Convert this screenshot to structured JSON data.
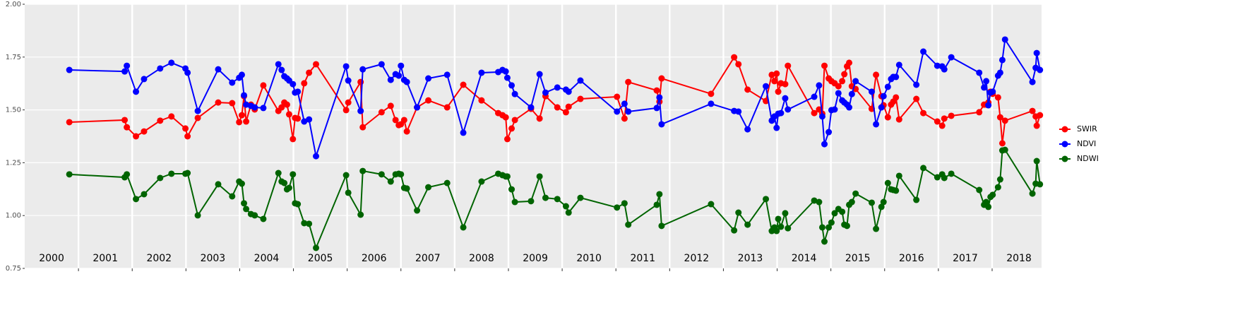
{
  "chart_data": {
    "type": "line",
    "x": [
      2000.83,
      2001.86,
      2001.9,
      2002.07,
      2002.22,
      2002.52,
      2002.73,
      2002.99,
      2003.03,
      2003.22,
      2003.6,
      2003.86,
      2003.99,
      2004.04,
      2004.08,
      2004.12,
      2004.21,
      2004.28,
      2004.44,
      2004.72,
      2004.78,
      2004.83,
      2004.88,
      2004.92,
      2004.99,
      2005.03,
      2005.08,
      2005.2,
      2005.29,
      2005.42,
      2005.98,
      2006.02,
      2006.25,
      2006.29,
      2006.64,
      2006.81,
      2006.9,
      2006.96,
      2007.0,
      2007.06,
      2007.11,
      2007.3,
      2007.51,
      2007.86,
      2008.16,
      2008.5,
      2008.81,
      2008.89,
      2008.95,
      2008.98,
      2009.06,
      2009.12,
      2009.42,
      2009.58,
      2009.69,
      2009.91,
      2010.07,
      2010.12,
      2010.34,
      2011.02,
      2011.16,
      2011.23,
      2011.76,
      2011.81,
      2011.85,
      2012.77,
      2013.2,
      2013.28,
      2013.45,
      2013.79,
      2013.9,
      2013.95,
      2013.99,
      2014.02,
      2014.07,
      2014.15,
      2014.2,
      2014.69,
      2014.78,
      2014.84,
      2014.88,
      2014.96,
      2015.01,
      2015.07,
      2015.14,
      2015.21,
      2015.25,
      2015.3,
      2015.34,
      2015.39,
      2015.46,
      2015.76,
      2015.84,
      2015.94,
      2015.98,
      2016.06,
      2016.12,
      2016.16,
      2016.21,
      2016.27,
      2016.59,
      2016.72,
      2016.98,
      2017.07,
      2017.11,
      2017.24,
      2017.76,
      2017.85,
      2017.89,
      2017.93,
      2017.97,
      2018.01,
      2018.11,
      2018.15,
      2018.19,
      2018.24,
      2018.75,
      2018.81,
      2018.83,
      2018.89
    ],
    "series": [
      {
        "name": "SWIR",
        "color": "#ff0000",
        "values": [
          1.442,
          1.452,
          1.418,
          1.375,
          1.398,
          1.449,
          1.469,
          1.412,
          1.375,
          1.462,
          1.535,
          1.532,
          1.442,
          1.475,
          1.565,
          1.445,
          1.525,
          1.502,
          1.616,
          1.495,
          1.512,
          1.535,
          1.525,
          1.479,
          1.362,
          1.462,
          1.459,
          1.626,
          1.676,
          1.716,
          1.499,
          1.535,
          1.632,
          1.418,
          1.489,
          1.519,
          1.452,
          1.428,
          1.432,
          1.452,
          1.398,
          1.512,
          1.545,
          1.512,
          1.619,
          1.545,
          1.485,
          1.475,
          1.465,
          1.362,
          1.412,
          1.452,
          1.505,
          1.459,
          1.565,
          1.512,
          1.489,
          1.515,
          1.552,
          1.562,
          1.459,
          1.632,
          1.592,
          1.539,
          1.649,
          1.576,
          1.749,
          1.716,
          1.596,
          1.542,
          1.666,
          1.636,
          1.672,
          1.586,
          1.626,
          1.622,
          1.709,
          1.485,
          1.502,
          1.482,
          1.709,
          1.649,
          1.636,
          1.626,
          1.612,
          1.636,
          1.669,
          1.706,
          1.723,
          1.612,
          1.599,
          1.505,
          1.666,
          1.565,
          1.522,
          1.465,
          1.525,
          1.539,
          1.559,
          1.455,
          1.552,
          1.485,
          1.445,
          1.425,
          1.459,
          1.472,
          1.489,
          1.525,
          1.525,
          1.535,
          1.586,
          1.576,
          1.559,
          1.465,
          1.342,
          1.449,
          1.495,
          1.469,
          1.425,
          1.475
        ]
      },
      {
        "name": "NDVI",
        "color": "#0000ff",
        "values": [
          1.689,
          1.682,
          1.709,
          1.586,
          1.646,
          1.696,
          1.723,
          1.696,
          1.676,
          1.495,
          1.692,
          1.629,
          1.652,
          1.666,
          1.569,
          1.525,
          1.519,
          1.512,
          1.509,
          1.716,
          1.689,
          1.659,
          1.649,
          1.639,
          1.622,
          1.582,
          1.586,
          1.445,
          1.455,
          1.281,
          1.706,
          1.639,
          1.495,
          1.692,
          1.716,
          1.642,
          1.669,
          1.662,
          1.709,
          1.642,
          1.632,
          1.512,
          1.649,
          1.666,
          1.392,
          1.676,
          1.679,
          1.689,
          1.682,
          1.652,
          1.616,
          1.575,
          1.512,
          1.669,
          1.582,
          1.606,
          1.596,
          1.586,
          1.639,
          1.492,
          1.529,
          1.492,
          1.509,
          1.559,
          1.432,
          1.529,
          1.495,
          1.492,
          1.408,
          1.612,
          1.449,
          1.469,
          1.415,
          1.482,
          1.485,
          1.555,
          1.502,
          1.562,
          1.616,
          1.469,
          1.338,
          1.395,
          1.499,
          1.502,
          1.579,
          1.545,
          1.535,
          1.525,
          1.512,
          1.575,
          1.636,
          1.586,
          1.432,
          1.512,
          1.565,
          1.609,
          1.646,
          1.656,
          1.656,
          1.713,
          1.619,
          1.776,
          1.709,
          1.706,
          1.692,
          1.749,
          1.676,
          1.606,
          1.636,
          1.522,
          1.582,
          1.586,
          1.662,
          1.676,
          1.736,
          1.833,
          1.632,
          1.699,
          1.769,
          1.689
        ]
      },
      {
        "name": "NDWI",
        "color": "#006400",
        "values": [
          1.195,
          1.181,
          1.195,
          1.078,
          1.101,
          1.178,
          1.198,
          1.198,
          1.201,
          1.001,
          1.148,
          1.091,
          1.161,
          1.151,
          1.058,
          1.031,
          1.007,
          1.001,
          0.984,
          1.201,
          1.161,
          1.154,
          1.124,
          1.131,
          1.195,
          1.058,
          1.054,
          0.964,
          0.961,
          0.847,
          1.191,
          1.108,
          1.004,
          1.211,
          1.195,
          1.161,
          1.195,
          1.198,
          1.195,
          1.131,
          1.128,
          1.024,
          1.134,
          1.154,
          0.944,
          1.161,
          1.198,
          1.191,
          1.185,
          1.185,
          1.124,
          1.064,
          1.068,
          1.185,
          1.084,
          1.078,
          1.044,
          1.014,
          1.084,
          1.038,
          1.058,
          0.957,
          1.051,
          1.101,
          0.951,
          1.054,
          0.93,
          1.014,
          0.957,
          1.078,
          0.927,
          0.944,
          0.927,
          0.984,
          0.947,
          1.011,
          0.94,
          1.071,
          1.064,
          0.944,
          0.877,
          0.944,
          0.967,
          1.011,
          1.031,
          1.018,
          0.957,
          0.951,
          1.051,
          1.064,
          1.104,
          1.061,
          0.937,
          1.041,
          1.064,
          1.154,
          1.124,
          1.121,
          1.118,
          1.188,
          1.074,
          1.225,
          1.181,
          1.195,
          1.178,
          1.198,
          1.121,
          1.051,
          1.064,
          1.041,
          1.088,
          1.098,
          1.134,
          1.171,
          1.308,
          1.311,
          1.104,
          1.151,
          1.258,
          1.148
        ]
      }
    ],
    "year_labels": [
      "2000",
      "2001",
      "2002",
      "2003",
      "2004",
      "2005",
      "2006",
      "2007",
      "2008",
      "2009",
      "2010",
      "2011",
      "2012",
      "2013",
      "2014",
      "2015",
      "2016",
      "2017",
      "2018"
    ],
    "xlim": [
      2000,
      2018.92
    ],
    "xticks": [
      2001,
      2002,
      2003,
      2004,
      2005,
      2006,
      2007,
      2008,
      2009,
      2010,
      2011,
      2012,
      2013,
      2014,
      2015,
      2016,
      2017,
      2018
    ],
    "ylim": [
      0.75,
      2.0
    ],
    "yticks": [
      {
        "value": 0.75,
        "label": "0.75"
      },
      {
        "value": 1.0,
        "label": "1.00"
      },
      {
        "value": 1.25,
        "label": "1.25"
      },
      {
        "value": 1.5,
        "label": "1.50"
      },
      {
        "value": 1.75,
        "label": "1.75"
      },
      {
        "value": 2.0,
        "label": "2.00"
      }
    ],
    "grid": true,
    "legend": "right"
  }
}
